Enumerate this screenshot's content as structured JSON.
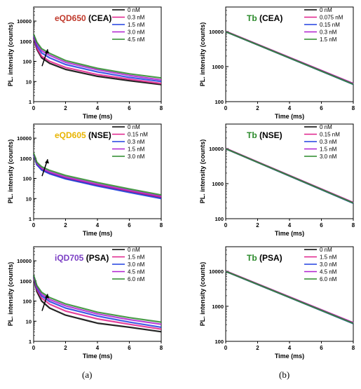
{
  "panel_labels": [
    "(a)",
    "(b)"
  ],
  "chart_data": [
    {
      "type": "line",
      "title_parts": [
        {
          "text": "eQD650",
          "color": "#c0392b"
        },
        {
          "text": " (CEA)",
          "color": "#000000"
        }
      ],
      "xlabel": "Time (ms)",
      "ylabel": "PL. intensity (counts)",
      "xlim": [
        0,
        8
      ],
      "ylim": [
        1,
        50000
      ],
      "yscale": "log",
      "xticks": [
        "0",
        "2",
        "4",
        "6",
        "8"
      ],
      "yticks": [
        "1",
        "10",
        "100",
        "1000",
        "10000"
      ],
      "legend_position": "top-right",
      "series": [
        {
          "name": "0 nM",
          "color": "#000000",
          "x": [
            0,
            0.2,
            0.5,
            1,
            2,
            4,
            6,
            8
          ],
          "values": [
            1500,
            400,
            150,
            80,
            40,
            18,
            11,
            7
          ]
        },
        {
          "name": "0.3 nM",
          "color": "#e0218a",
          "x": [
            0,
            0.2,
            0.5,
            1,
            2,
            4,
            6,
            8
          ],
          "values": [
            1600,
            450,
            180,
            100,
            50,
            22,
            13,
            8
          ]
        },
        {
          "name": "1.5 nM",
          "color": "#2040e0",
          "x": [
            0,
            0.2,
            0.5,
            1,
            2,
            4,
            6,
            8
          ],
          "values": [
            1800,
            600,
            260,
            150,
            70,
            30,
            16,
            10
          ]
        },
        {
          "name": "3.0 nM",
          "color": "#b020d0",
          "x": [
            0,
            0.2,
            0.5,
            1,
            2,
            4,
            6,
            8
          ],
          "values": [
            2000,
            750,
            340,
            200,
            90,
            38,
            20,
            12
          ]
        },
        {
          "name": "4.5 nM",
          "color": "#2a8a2a",
          "x": [
            0,
            0.2,
            0.5,
            1,
            2,
            4,
            6,
            8
          ],
          "values": [
            2200,
            900,
            420,
            250,
            110,
            45,
            24,
            15
          ]
        }
      ]
    },
    {
      "type": "line",
      "title_parts": [
        {
          "text": "Tb",
          "color": "#2a8a2a"
        },
        {
          "text": " (CEA)",
          "color": "#000000"
        }
      ],
      "xlabel": "Time (ms)",
      "ylabel": "PL. intensity (counts)",
      "xlim": [
        0,
        8
      ],
      "ylim": [
        100,
        50000
      ],
      "yscale": "log",
      "xticks": [
        "0",
        "2",
        "4",
        "6",
        "8"
      ],
      "yticks": [
        "100",
        "1000",
        "10000"
      ],
      "legend_position": "top-right",
      "series": [
        {
          "name": "0 nM",
          "color": "#000000",
          "x": [
            0,
            8
          ],
          "values": [
            10000,
            320
          ]
        },
        {
          "name": "0.075 nM",
          "color": "#e0218a",
          "x": [
            0,
            8
          ],
          "values": [
            10100,
            330
          ]
        },
        {
          "name": "0.15 nM",
          "color": "#2040e0",
          "x": [
            0,
            8
          ],
          "values": [
            9900,
            310
          ]
        },
        {
          "name": "0.3 nM",
          "color": "#b020d0",
          "x": [
            0,
            8
          ],
          "values": [
            10050,
            325
          ]
        },
        {
          "name": "1.5 nM",
          "color": "#2a8a2a",
          "x": [
            0,
            8
          ],
          "values": [
            9950,
            315
          ]
        }
      ]
    },
    {
      "type": "line",
      "title_parts": [
        {
          "text": "eQD605",
          "color": "#e8b400"
        },
        {
          "text": " (NSE)",
          "color": "#000000"
        }
      ],
      "xlabel": "Time (ms)",
      "ylabel": "PL. intensity (counts)",
      "xlim": [
        0,
        8
      ],
      "ylim": [
        1,
        50000
      ],
      "yscale": "log",
      "xticks": [
        "0",
        "2",
        "4",
        "6",
        "8"
      ],
      "yticks": [
        "1",
        "10",
        "100",
        "1000",
        "10000"
      ],
      "legend_position": "top-right",
      "series": [
        {
          "name": "0 nM",
          "color": "#000000",
          "x": [
            0,
            0.2,
            0.5,
            1,
            2,
            4,
            6,
            8
          ],
          "values": [
            1500,
            500,
            280,
            180,
            100,
            45,
            22,
            11
          ]
        },
        {
          "name": "0.15 nM",
          "color": "#e0218a",
          "x": [
            0,
            0.2,
            0.5,
            1,
            2,
            4,
            6,
            8
          ],
          "values": [
            1550,
            520,
            290,
            185,
            105,
            47,
            23,
            12
          ]
        },
        {
          "name": "0.3 nM",
          "color": "#2040e0",
          "x": [
            0,
            0.2,
            0.5,
            1,
            2,
            4,
            6,
            8
          ],
          "values": [
            1500,
            480,
            260,
            170,
            95,
            42,
            20,
            10
          ]
        },
        {
          "name": "1.5 nM",
          "color": "#b020d0",
          "x": [
            0,
            0.2,
            0.5,
            1,
            2,
            4,
            6,
            8
          ],
          "values": [
            1650,
            560,
            320,
            210,
            120,
            52,
            26,
            13
          ]
        },
        {
          "name": "3.0 nM",
          "color": "#2a8a2a",
          "x": [
            0,
            0.2,
            0.5,
            1,
            2,
            4,
            6,
            8
          ],
          "values": [
            1800,
            640,
            380,
            250,
            140,
            62,
            30,
            15
          ]
        }
      ]
    },
    {
      "type": "line",
      "title_parts": [
        {
          "text": "Tb",
          "color": "#2a8a2a"
        },
        {
          "text": " (NSE)",
          "color": "#000000"
        }
      ],
      "xlabel": "Time (ms)",
      "ylabel": "PL. intensity (counts)",
      "xlim": [
        0,
        8
      ],
      "ylim": [
        100,
        50000
      ],
      "yscale": "log",
      "xticks": [
        "0",
        "2",
        "4",
        "6",
        "8"
      ],
      "yticks": [
        "100",
        "1000",
        "10000"
      ],
      "legend_position": "top-right",
      "series": [
        {
          "name": "0 nM",
          "color": "#000000",
          "x": [
            0,
            8
          ],
          "values": [
            10000,
            280
          ]
        },
        {
          "name": "0.15 nM",
          "color": "#e0218a",
          "x": [
            0,
            8
          ],
          "values": [
            10100,
            290
          ]
        },
        {
          "name": "0.3 nM",
          "color": "#2040e0",
          "x": [
            0,
            8
          ],
          "values": [
            9900,
            275
          ]
        },
        {
          "name": "1.5 nM",
          "color": "#b020d0",
          "x": [
            0,
            8
          ],
          "values": [
            10050,
            285
          ]
        },
        {
          "name": "3.0 nM",
          "color": "#2a8a2a",
          "x": [
            0,
            8
          ],
          "values": [
            9950,
            280
          ]
        }
      ]
    },
    {
      "type": "line",
      "title_parts": [
        {
          "text": "iQD705",
          "color": "#7b3fc4"
        },
        {
          "text": " (PSA)",
          "color": "#000000"
        }
      ],
      "xlabel": "Time (ms)",
      "ylabel": "PL. intensity (counts)",
      "xlim": [
        0,
        8
      ],
      "ylim": [
        1,
        50000
      ],
      "yscale": "log",
      "xticks": [
        "0",
        "2",
        "4",
        "6",
        "8"
      ],
      "yticks": [
        "1",
        "10",
        "100",
        "1000",
        "10000"
      ],
      "legend_position": "top-right",
      "series": [
        {
          "name": "0 nM",
          "color": "#000000",
          "x": [
            0,
            0.2,
            0.5,
            1,
            2,
            4,
            6,
            8
          ],
          "values": [
            1500,
            300,
            100,
            45,
            20,
            8,
            5,
            3
          ]
        },
        {
          "name": "1.5 nM",
          "color": "#e0218a",
          "x": [
            0,
            0.2,
            0.5,
            1,
            2,
            4,
            6,
            8
          ],
          "values": [
            1600,
            380,
            140,
            70,
            32,
            13,
            7,
            4
          ]
        },
        {
          "name": "3.0 nM",
          "color": "#2040e0",
          "x": [
            0,
            0.2,
            0.5,
            1,
            2,
            4,
            6,
            8
          ],
          "values": [
            1700,
            450,
            180,
            95,
            45,
            18,
            9,
            5
          ]
        },
        {
          "name": "4.5 nM",
          "color": "#b020d0",
          "x": [
            0,
            0.2,
            0.5,
            1,
            2,
            4,
            6,
            8
          ],
          "values": [
            1800,
            520,
            220,
            120,
            58,
            23,
            12,
            7
          ]
        },
        {
          "name": "6.0 nM",
          "color": "#2a8a2a",
          "x": [
            0,
            0.2,
            0.5,
            1,
            2,
            4,
            6,
            8
          ],
          "values": [
            1900,
            600,
            270,
            150,
            72,
            28,
            15,
            9
          ]
        }
      ]
    },
    {
      "type": "line",
      "title_parts": [
        {
          "text": "Tb",
          "color": "#2a8a2a"
        },
        {
          "text": " (PSA)",
          "color": "#000000"
        }
      ],
      "xlabel": "Time (ms)",
      "ylabel": "PL. intensity (counts)",
      "xlim": [
        0,
        8
      ],
      "ylim": [
        100,
        50000
      ],
      "yscale": "log",
      "xticks": [
        "0",
        "2",
        "4",
        "6",
        "8"
      ],
      "yticks": [
        "100",
        "1000",
        "10000"
      ],
      "legend_position": "top-right",
      "series": [
        {
          "name": "0 nM",
          "color": "#000000",
          "x": [
            0,
            8
          ],
          "values": [
            10000,
            330
          ]
        },
        {
          "name": "1.5 nM",
          "color": "#e0218a",
          "x": [
            0,
            8
          ],
          "values": [
            10100,
            340
          ]
        },
        {
          "name": "3.0 nM",
          "color": "#2040e0",
          "x": [
            0,
            8
          ],
          "values": [
            9900,
            320
          ]
        },
        {
          "name": "4.5 nM",
          "color": "#b020d0",
          "x": [
            0,
            8
          ],
          "values": [
            10050,
            335
          ]
        },
        {
          "name": "6.0 nM",
          "color": "#2a8a2a",
          "x": [
            0,
            8
          ],
          "values": [
            9950,
            325
          ]
        }
      ]
    }
  ]
}
